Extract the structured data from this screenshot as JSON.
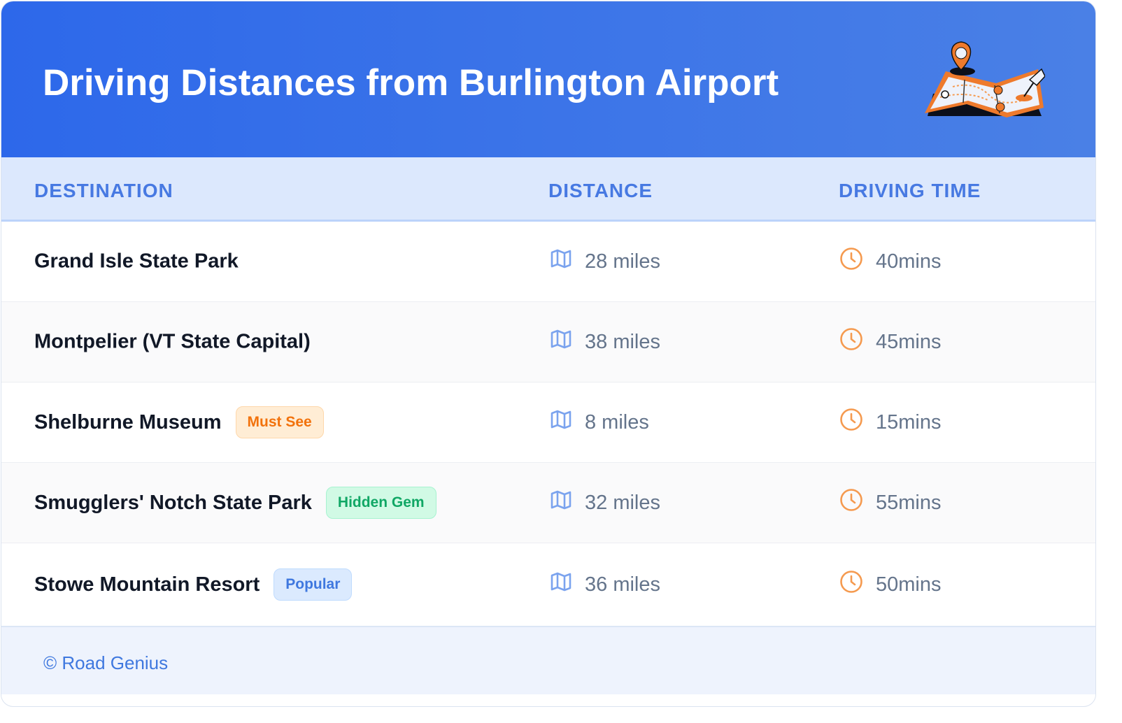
{
  "header": {
    "title": "Driving Distances from Burlington Airport",
    "illustration_icon": "map-with-pins-icon"
  },
  "columns": [
    "DESTINATION",
    "DISTANCE",
    "DRIVING TIME"
  ],
  "rows": [
    {
      "destination": "Grand Isle State Park",
      "badge": null,
      "distance": "28 miles",
      "time": "40mins"
    },
    {
      "destination": "Montpelier (VT State Capital)",
      "badge": null,
      "distance": "38 miles",
      "time": "45mins"
    },
    {
      "destination": "Shelburne Museum",
      "badge": "Must See",
      "distance": "8 miles",
      "time": "15mins"
    },
    {
      "destination": "Smugglers' Notch State Park",
      "badge": "Hidden Gem",
      "distance": "32 miles",
      "time": "55mins"
    },
    {
      "destination": "Stowe Mountain Resort",
      "badge": "Popular",
      "distance": "36 miles",
      "time": "50mins"
    }
  ],
  "footer": {
    "copyright": "© Road Genius"
  },
  "colors": {
    "header": "#2d68ea",
    "accent_blue": "#4779e2",
    "clock": "#f59a4f",
    "must_see": "#f2720c",
    "hidden_gem": "#10a765"
  }
}
